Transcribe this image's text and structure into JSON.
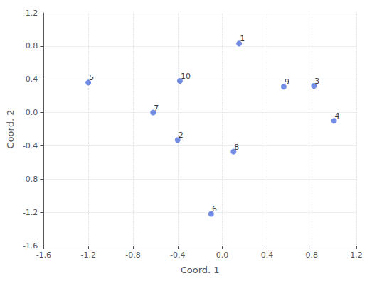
{
  "chart_data": {
    "type": "scatter",
    "x": [
      0.15,
      -0.4,
      0.82,
      1.0,
      -1.2,
      -0.1,
      -0.62,
      0.1,
      0.55,
      -0.38
    ],
    "values": [
      0.83,
      -0.33,
      0.32,
      -0.1,
      0.36,
      -1.22,
      0.0,
      -0.47,
      0.31,
      0.38
    ],
    "labels": [
      "1",
      "2",
      "3",
      "4",
      "5",
      "6",
      "7",
      "8",
      "9",
      "10"
    ],
    "xlabel": "Coord. 1",
    "ylabel": "Coord. 2",
    "xlim": [
      -1.6,
      1.2
    ],
    "ylim": [
      -1.6,
      1.2
    ],
    "xticks": [
      -1.6,
      -1.2,
      -0.8,
      -0.4,
      {
        "value": 0,
        "label": "0.0"
      },
      0.4,
      0.8,
      1.2
    ],
    "yticks": [
      -1.6,
      -1.2,
      -0.8,
      -0.4,
      {
        "value": 0,
        "label": "0.0"
      },
      0.4,
      0.8,
      1.2
    ],
    "marker": "circle",
    "grid": true
  }
}
